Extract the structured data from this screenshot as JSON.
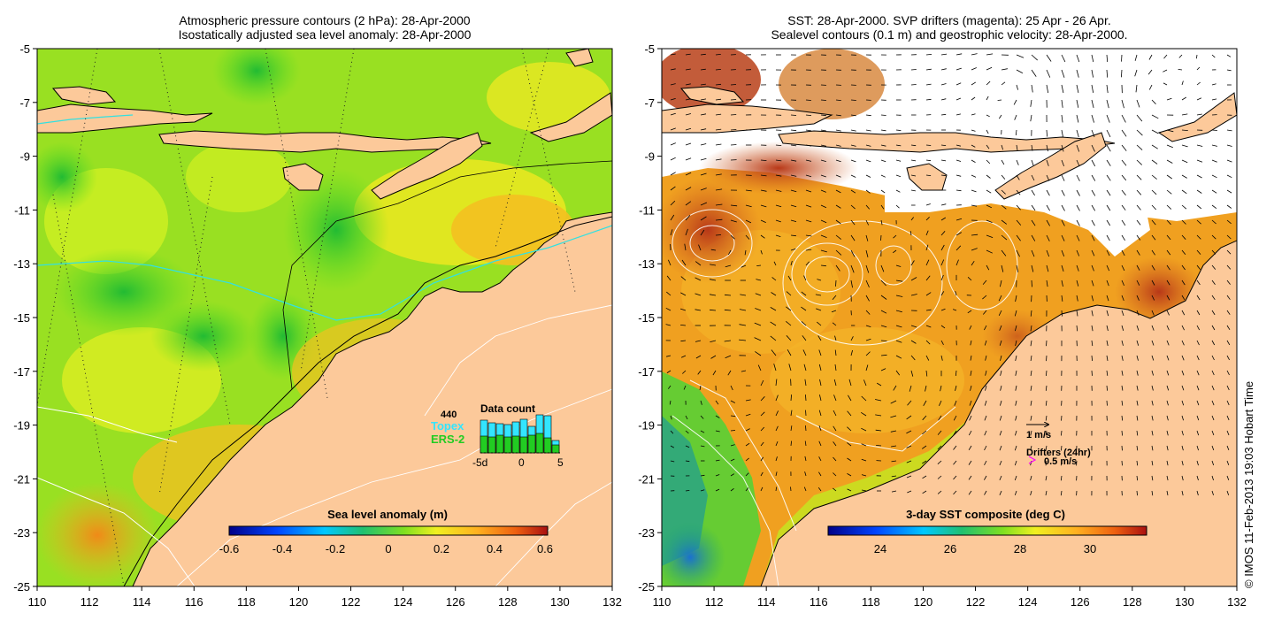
{
  "left_panel": {
    "title_line1": "Atmospheric pressure contours (2 hPa): 28-Apr-2000",
    "title_line2": "Isostatically adjusted sea level anomaly: 28-Apr-2000",
    "colorbar_label": "Sea level anomaly (m)",
    "colorbar_ticks": [
      "-0.6",
      "-0.4",
      "-0.2",
      "0",
      "0.2",
      "0.4",
      "0.6"
    ],
    "data_count": {
      "title": "Data count",
      "total": "440",
      "topex_label": "Topex",
      "ers_label": "ERS-2",
      "x_ticks": [
        "-5d",
        "0",
        "5"
      ],
      "colors": {
        "topex": "#33e5ff",
        "ers": "#22cc22"
      }
    }
  },
  "right_panel": {
    "title_line1": "SST: 28-Apr-2000. SVP drifters (magenta): 25 Apr - 26 Apr.",
    "title_line2": "Sealevel contours (0.1 m) and geostrophic velocity: 28-Apr-2000.",
    "colorbar_label": "3-day SST composite (deg C)",
    "colorbar_ticks": [
      "24",
      "26",
      "28",
      "30"
    ],
    "velocity_scale": "1 m/s",
    "drifters_label": "Drifters (24hr)",
    "drifter_scale": "0.5 m/s",
    "drifter_color": "#ff00ff"
  },
  "axes": {
    "lon_ticks": [
      "110",
      "112",
      "114",
      "116",
      "118",
      "120",
      "122",
      "124",
      "126",
      "128",
      "130",
      "132"
    ],
    "lat_ticks": [
      "-5",
      "-7",
      "-9",
      "-11",
      "-13",
      "-15",
      "-17",
      "-19",
      "-21",
      "-23",
      "-25"
    ]
  },
  "credit": "© IMOS 11-Feb-2013 19:03 Hobart Time",
  "colors": {
    "land": "#fcc99a",
    "sla_green": "#66dd22",
    "sla_yellow": "#ccee22",
    "sst_orange": "#f0a020",
    "sst_red": "#c04018"
  }
}
